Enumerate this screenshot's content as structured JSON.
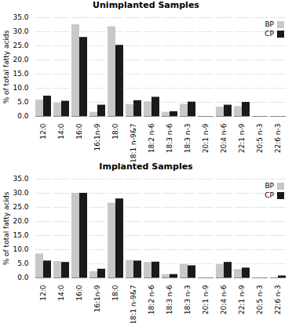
{
  "chart_data": [
    {
      "type": "bar",
      "title": "Unimplanted Samples",
      "categories": [
        "12:0",
        "14:0",
        "16:0",
        "16:1n-9",
        "18:0",
        "18:1 n-9&7",
        "18:2 n-6",
        "18:3 n-6",
        "18:3 n-3",
        "20:1 n-9",
        "20:4 n-6",
        "22:1 n-9",
        "20:5 n-3",
        "22:6 n-3"
      ],
      "series": [
        {
          "name": "BP",
          "color": "#c8c8c8",
          "values": [
            5.8,
            4.7,
            32.5,
            1.5,
            31.8,
            4.2,
            5.2,
            1.5,
            4.3,
            0.0,
            3.3,
            3.5,
            0.0,
            0.0
          ]
        },
        {
          "name": "CP",
          "color": "#1a1a1a",
          "values": [
            7.2,
            5.4,
            28.0,
            4.0,
            25.2,
            5.6,
            6.8,
            1.7,
            5.1,
            0.0,
            4.0,
            5.0,
            0.0,
            0.0
          ]
        }
      ],
      "ylabel": "% of total fatty acids",
      "ylim": [
        0,
        35
      ],
      "yticks": [
        {
          "value": 0,
          "label": "0.0"
        },
        {
          "value": 5,
          "label": "5.0"
        },
        {
          "value": 10,
          "label": "10.0"
        },
        {
          "value": 15,
          "label": "15.0"
        },
        {
          "value": 20,
          "label": "20.0"
        },
        {
          "value": 25,
          "label": "25.0"
        },
        {
          "value": 30,
          "label": "30.0"
        },
        {
          "value": 35,
          "label": "35.0"
        }
      ],
      "grid": true,
      "legend": "upper right"
    },
    {
      "type": "bar",
      "title": "Implanted Samples",
      "categories": [
        "12:0",
        "14:0",
        "16:0",
        "16:1n-9",
        "18:0",
        "18:1 n-9&7",
        "18:2 n-6",
        "18:3 n-6",
        "18:3 n-3",
        "20:1 n-9",
        "20:4 n-6",
        "22:1 n-9",
        "20:5 n-3",
        "22:6 n-3"
      ],
      "series": [
        {
          "name": "BP",
          "color": "#c8c8c8",
          "values": [
            8.5,
            5.8,
            30.0,
            2.2,
            26.5,
            6.2,
            5.5,
            1.2,
            4.8,
            0.0,
            4.7,
            3.0,
            0.0,
            0.0
          ]
        },
        {
          "name": "CP",
          "color": "#1a1a1a",
          "values": [
            6.0,
            5.5,
            30.0,
            3.1,
            28.0,
            6.0,
            5.6,
            1.2,
            4.3,
            0.0,
            5.5,
            3.5,
            0.0,
            0.7
          ]
        }
      ],
      "ylabel": "% of total fatty acids",
      "ylim": [
        0,
        35
      ],
      "yticks": [
        {
          "value": 0,
          "label": "0.0"
        },
        {
          "value": 5,
          "label": "5.0"
        },
        {
          "value": 10,
          "label": "10.0"
        },
        {
          "value": 15,
          "label": "15.0"
        },
        {
          "value": 20,
          "label": "20.0"
        },
        {
          "value": 25,
          "label": "25.0"
        },
        {
          "value": 30,
          "label": "30.0"
        },
        {
          "value": 35,
          "label": "35.0"
        }
      ],
      "grid": true,
      "legend": "upper right"
    }
  ]
}
